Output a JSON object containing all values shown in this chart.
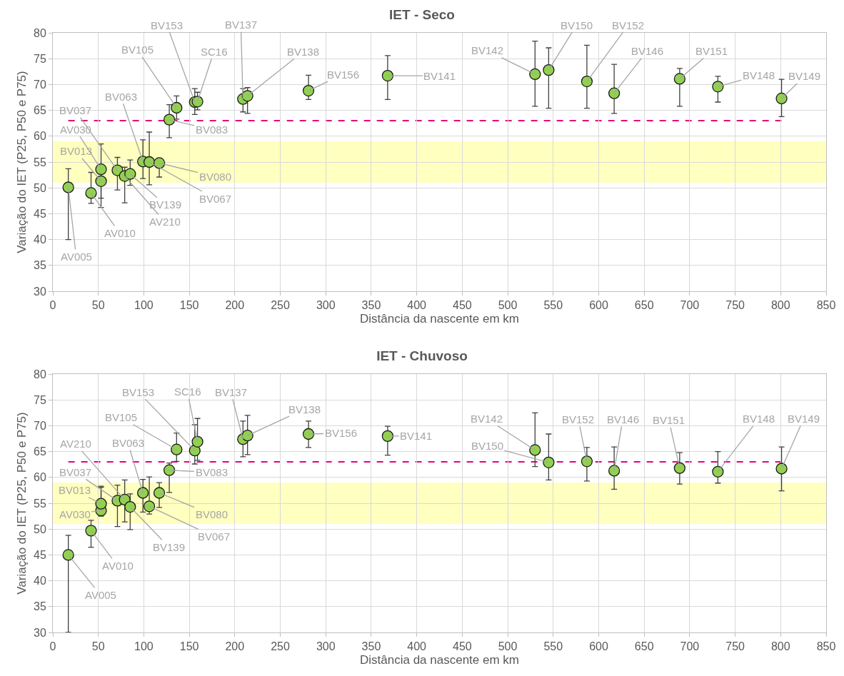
{
  "chart_data": [
    {
      "type": "scatter",
      "title": "IET - Seco",
      "xlabel": "Distância da nascente em km",
      "ylabel": "Variação do IET (P25, P50 e P75)",
      "x": [
        17,
        42,
        53,
        53,
        71,
        79,
        85,
        99,
        106,
        117,
        128,
        136,
        156,
        159,
        209,
        214,
        281,
        368,
        530,
        545,
        587,
        617,
        689,
        731,
        801
      ],
      "series": [
        {
          "color": "#92d050",
          "values": [
            50.1,
            49.0,
            53.6,
            51.3,
            53.4,
            52.3,
            52.7,
            55.1,
            55.0,
            54.8,
            63.2,
            65.5,
            66.6,
            66.7,
            67.2,
            67.8,
            68.8,
            71.7,
            72.0,
            72.8,
            70.6,
            68.3,
            71.1,
            69.6,
            67.3
          ],
          "errors": [
            [
              40.0,
              53.7
            ],
            [
              47.0,
              53.0
            ],
            [
              48.0,
              58.5
            ],
            [
              46.2,
              53.5
            ],
            [
              49.6,
              55.9
            ],
            [
              47.1,
              54.0
            ],
            [
              50.5,
              55.4
            ],
            [
              51.8,
              59.3
            ],
            [
              50.6,
              60.8
            ],
            [
              52.1,
              55.6
            ],
            [
              59.7,
              66.1
            ],
            [
              63.3,
              67.8
            ],
            [
              64.2,
              69.2
            ],
            [
              65.1,
              68.5
            ],
            [
              64.7,
              69.2
            ],
            [
              64.4,
              69.4
            ],
            [
              67.1,
              71.8
            ],
            [
              67.1,
              75.6
            ],
            [
              65.8,
              78.4
            ],
            [
              65.4,
              77.1
            ],
            [
              65.4,
              77.6
            ],
            [
              64.4,
              73.9
            ],
            [
              65.8,
              73.1
            ],
            [
              66.6,
              71.6
            ],
            [
              63.8,
              71.0
            ]
          ]
        }
      ],
      "marker": "circle",
      "grid": true,
      "xlim": [
        0,
        850
      ],
      "xticks": [
        0,
        50,
        100,
        150,
        200,
        250,
        300,
        350,
        400,
        450,
        500,
        550,
        600,
        650,
        700,
        750,
        800,
        850
      ],
      "ylim": [
        30,
        80
      ],
      "yticks": [
        30,
        35,
        40,
        45,
        50,
        55,
        60,
        65,
        70,
        75,
        80
      ],
      "ref_lines": [
        {
          "axis": "y",
          "value": 63,
          "color": "#e6007e",
          "line_style": "dashed"
        }
      ],
      "bands": [
        {
          "axis": "y",
          "from": 51,
          "to": 59,
          "color": "#ffffc0"
        }
      ],
      "annotations": [
        {
          "text": "AV005",
          "x": 17,
          "y": 50.1
        },
        {
          "text": "AV010",
          "x": 42,
          "y": 49.0
        },
        {
          "text": "AV030",
          "x": 53,
          "y": 53.6
        },
        {
          "text": "BV013",
          "x": 53,
          "y": 51.3
        },
        {
          "text": "BV037",
          "x": 71,
          "y": 53.4
        },
        {
          "text": "AV210",
          "x": 79,
          "y": 52.3
        },
        {
          "text": "BV139",
          "x": 85,
          "y": 52.7
        },
        {
          "text": "BV063",
          "x": 99,
          "y": 55.1
        },
        {
          "text": "BV067",
          "x": 106,
          "y": 55.0
        },
        {
          "text": "BV080",
          "x": 117,
          "y": 54.8
        },
        {
          "text": "BV083",
          "x": 128,
          "y": 63.2
        },
        {
          "text": "BV105",
          "x": 136,
          "y": 65.5
        },
        {
          "text": "BV153",
          "x": 156,
          "y": 66.6
        },
        {
          "text": "SC16",
          "x": 159,
          "y": 66.7
        },
        {
          "text": "BV137",
          "x": 209,
          "y": 67.2
        },
        {
          "text": "BV138",
          "x": 214,
          "y": 67.8
        },
        {
          "text": "BV156",
          "x": 281,
          "y": 68.8
        },
        {
          "text": "BV141",
          "x": 368,
          "y": 71.7
        },
        {
          "text": "BV142",
          "x": 530,
          "y": 72.0
        },
        {
          "text": "BV150",
          "x": 545,
          "y": 72.8
        },
        {
          "text": "BV152",
          "x": 587,
          "y": 70.6
        },
        {
          "text": "BV146",
          "x": 617,
          "y": 68.3
        },
        {
          "text": "BV151",
          "x": 689,
          "y": 71.1
        },
        {
          "text": "BV148",
          "x": 731,
          "y": 69.6
        },
        {
          "text": "BV149",
          "x": 801,
          "y": 67.3
        }
      ]
    },
    {
      "type": "scatter",
      "title": "IET - Chuvoso",
      "xlabel": "Distância da nascente em km",
      "ylabel": "Variação do IET (P25, P50 e P75)",
      "x": [
        17,
        42,
        53,
        53,
        71,
        79,
        85,
        99,
        106,
        117,
        128,
        136,
        156,
        159,
        209,
        214,
        281,
        368,
        530,
        545,
        587,
        617,
        689,
        731,
        801
      ],
      "series": [
        {
          "color": "#92d050",
          "values": [
            45.0,
            49.7,
            53.6,
            54.9,
            55.5,
            55.7,
            54.3,
            57.0,
            54.4,
            57.0,
            61.4,
            65.4,
            65.2,
            66.9,
            67.4,
            68.1,
            68.4,
            68.0,
            65.3,
            62.9,
            63.1,
            61.3,
            61.8,
            61.1,
            61.7
          ],
          "errors": [
            [
              30,
              48.8
            ],
            [
              46.5,
              51.7
            ],
            [
              52.5,
              58.1
            ],
            [
              53.5,
              58.3
            ],
            [
              50.5,
              58.5
            ],
            [
              51.4,
              59.5
            ],
            [
              49.9,
              56.8
            ],
            [
              53.3,
              59.6
            ],
            [
              52.9,
              60.1
            ],
            [
              54.2,
              59.0
            ],
            [
              57.1,
              62.8
            ],
            [
              63.1,
              68.6
            ],
            [
              62.6,
              70.2
            ],
            [
              63.3,
              71.4
            ],
            [
              64.0,
              70.9
            ],
            [
              64.4,
              72.0
            ],
            [
              65.8,
              70.9
            ],
            [
              64.3,
              69.9
            ],
            [
              62.1,
              72.5
            ],
            [
              59.5,
              68.4
            ],
            [
              59.3,
              65.8
            ],
            [
              57.7,
              65.9
            ],
            [
              58.7,
              64.8
            ],
            [
              58.9,
              65.0
            ],
            [
              57.4,
              65.9
            ]
          ]
        }
      ],
      "marker": "circle",
      "grid": true,
      "xlim": [
        0,
        850
      ],
      "xticks": [
        0,
        50,
        100,
        150,
        200,
        250,
        300,
        350,
        400,
        450,
        500,
        550,
        600,
        650,
        700,
        750,
        800,
        850
      ],
      "ylim": [
        30,
        80
      ],
      "yticks": [
        30,
        35,
        40,
        45,
        50,
        55,
        60,
        65,
        70,
        75,
        80
      ],
      "ref_lines": [
        {
          "axis": "y",
          "value": 63,
          "color": "#e6007e",
          "line_style": "dashed"
        }
      ],
      "bands": [
        {
          "axis": "y",
          "from": 51,
          "to": 59,
          "color": "#ffffc0"
        }
      ],
      "annotations": [
        {
          "text": "AV005",
          "x": 17,
          "y": 45.0
        },
        {
          "text": "AV010",
          "x": 42,
          "y": 49.7
        },
        {
          "text": "AV030",
          "x": 53,
          "y": 53.6
        },
        {
          "text": "BV013",
          "x": 53,
          "y": 54.9
        },
        {
          "text": "BV037",
          "x": 71,
          "y": 55.5
        },
        {
          "text": "AV210",
          "x": 79,
          "y": 55.7
        },
        {
          "text": "BV139",
          "x": 85,
          "y": 54.3
        },
        {
          "text": "BV063",
          "x": 99,
          "y": 57.0
        },
        {
          "text": "BV067",
          "x": 106,
          "y": 54.4
        },
        {
          "text": "BV080",
          "x": 117,
          "y": 57.0
        },
        {
          "text": "BV083",
          "x": 128,
          "y": 61.4
        },
        {
          "text": "BV105",
          "x": 136,
          "y": 65.4
        },
        {
          "text": "BV153",
          "x": 156,
          "y": 65.2
        },
        {
          "text": "SC16",
          "x": 159,
          "y": 66.9
        },
        {
          "text": "BV137",
          "x": 209,
          "y": 67.4
        },
        {
          "text": "BV138",
          "x": 214,
          "y": 68.1
        },
        {
          "text": "BV156",
          "x": 281,
          "y": 68.4
        },
        {
          "text": "BV141",
          "x": 368,
          "y": 68.0
        },
        {
          "text": "BV142",
          "x": 530,
          "y": 65.3
        },
        {
          "text": "BV150",
          "x": 545,
          "y": 62.9
        },
        {
          "text": "BV152",
          "x": 587,
          "y": 63.1
        },
        {
          "text": "BV146",
          "x": 617,
          "y": 61.3
        },
        {
          "text": "BV151",
          "x": 689,
          "y": 61.8
        },
        {
          "text": "BV148",
          "x": 731,
          "y": 61.1
        },
        {
          "text": "BV149",
          "x": 801,
          "y": 61.7
        }
      ]
    }
  ]
}
